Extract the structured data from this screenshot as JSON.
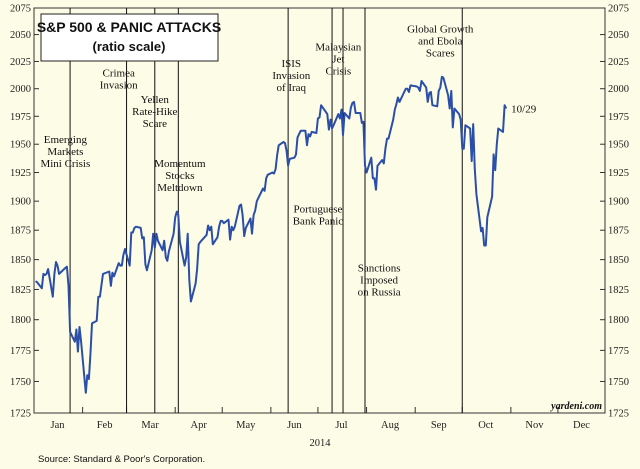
{
  "chart_data": {
    "type": "line",
    "title": "S&P 500 & PANIC ATTACKS",
    "subtitle": "(ratio scale)",
    "xlabel": "2014",
    "ylabel": "",
    "source": "Source: Standard & Poor's Corporation.",
    "watermark": "yardeni.com",
    "end_label": "10/29",
    "log_scale": true,
    "grid": false,
    "ylim": [
      1725,
      2075
    ],
    "xlim": [
      "2014-01-01",
      "2014-12-31"
    ],
    "y_ticks": [
      1725,
      1750,
      1775,
      1800,
      1825,
      1850,
      1875,
      1900,
      1925,
      1950,
      1975,
      2000,
      2025,
      2050,
      2075
    ],
    "x_ticks": [
      {
        "label": "Jan",
        "date": "2014-01-16"
      },
      {
        "label": "Feb",
        "date": "2014-02-15"
      },
      {
        "label": "Mar",
        "date": "2014-03-16"
      },
      {
        "label": "Apr",
        "date": "2014-04-16"
      },
      {
        "label": "May",
        "date": "2014-05-16"
      },
      {
        "label": "Jun",
        "date": "2014-06-16"
      },
      {
        "label": "Jul",
        "date": "2014-07-16"
      },
      {
        "label": "Aug",
        "date": "2014-08-16"
      },
      {
        "label": "Sep",
        "date": "2014-09-16"
      },
      {
        "label": "Oct",
        "date": "2014-10-16"
      },
      {
        "label": "Nov",
        "date": "2014-11-16"
      },
      {
        "label": "Dec",
        "date": "2014-12-16"
      }
    ],
    "series": [
      {
        "color": "#2b4fa8",
        "points": [
          [
            "2014-01-02",
            1832
          ],
          [
            "2014-01-03",
            1831
          ],
          [
            "2014-01-06",
            1826
          ],
          [
            "2014-01-07",
            1838
          ],
          [
            "2014-01-08",
            1837
          ],
          [
            "2014-01-09",
            1838
          ],
          [
            "2014-01-10",
            1842
          ],
          [
            "2014-01-13",
            1819
          ],
          [
            "2014-01-14",
            1838
          ],
          [
            "2014-01-15",
            1848
          ],
          [
            "2014-01-16",
            1845
          ],
          [
            "2014-01-17",
            1838
          ],
          [
            "2014-01-21",
            1843
          ],
          [
            "2014-01-22",
            1844
          ],
          [
            "2014-01-23",
            1828
          ],
          [
            "2014-01-24",
            1790
          ],
          [
            "2014-01-27",
            1782
          ],
          [
            "2014-01-28",
            1792
          ],
          [
            "2014-01-29",
            1774
          ],
          [
            "2014-01-30",
            1794
          ],
          [
            "2014-01-31",
            1782
          ],
          [
            "2014-02-03",
            1741
          ],
          [
            "2014-02-04",
            1755
          ],
          [
            "2014-02-05",
            1752
          ],
          [
            "2014-02-06",
            1773
          ],
          [
            "2014-02-07",
            1797
          ],
          [
            "2014-02-10",
            1799
          ],
          [
            "2014-02-11",
            1819
          ],
          [
            "2014-02-12",
            1819
          ],
          [
            "2014-02-13",
            1829
          ],
          [
            "2014-02-14",
            1838
          ],
          [
            "2014-02-18",
            1840
          ],
          [
            "2014-02-19",
            1828
          ],
          [
            "2014-02-20",
            1839
          ],
          [
            "2014-02-21",
            1836
          ],
          [
            "2014-02-24",
            1847
          ],
          [
            "2014-02-25",
            1845
          ],
          [
            "2014-02-26",
            1845
          ],
          [
            "2014-02-27",
            1854
          ],
          [
            "2014-02-28",
            1859
          ],
          [
            "2014-03-03",
            1845
          ],
          [
            "2014-03-04",
            1873
          ],
          [
            "2014-03-05",
            1873
          ],
          [
            "2014-03-06",
            1877
          ],
          [
            "2014-03-07",
            1878
          ],
          [
            "2014-03-10",
            1877
          ],
          [
            "2014-03-11",
            1868
          ],
          [
            "2014-03-12",
            1869
          ],
          [
            "2014-03-13",
            1846
          ],
          [
            "2014-03-14",
            1841
          ],
          [
            "2014-03-17",
            1858
          ],
          [
            "2014-03-18",
            1872
          ],
          [
            "2014-03-19",
            1860
          ],
          [
            "2014-03-20",
            1872
          ],
          [
            "2014-03-21",
            1866
          ],
          [
            "2014-03-24",
            1858
          ],
          [
            "2014-03-25",
            1866
          ],
          [
            "2014-03-26",
            1852
          ],
          [
            "2014-03-27",
            1849
          ],
          [
            "2014-03-28",
            1857
          ],
          [
            "2014-03-31",
            1872
          ],
          [
            "2014-04-01",
            1886
          ],
          [
            "2014-04-02",
            1891
          ],
          [
            "2014-04-03",
            1888
          ],
          [
            "2014-04-04",
            1865
          ],
          [
            "2014-04-07",
            1845
          ],
          [
            "2014-04-08",
            1852
          ],
          [
            "2014-04-09",
            1872
          ],
          [
            "2014-04-10",
            1833
          ],
          [
            "2014-04-11",
            1815
          ],
          [
            "2014-04-14",
            1830
          ],
          [
            "2014-04-15",
            1842
          ],
          [
            "2014-04-16",
            1863
          ],
          [
            "2014-04-17",
            1865
          ],
          [
            "2014-04-21",
            1871
          ],
          [
            "2014-04-22",
            1879
          ],
          [
            "2014-04-23",
            1875
          ],
          [
            "2014-04-24",
            1878
          ],
          [
            "2014-04-25",
            1863
          ],
          [
            "2014-04-28",
            1869
          ],
          [
            "2014-04-29",
            1878
          ],
          [
            "2014-04-30",
            1883
          ],
          [
            "2014-05-01",
            1883
          ],
          [
            "2014-05-02",
            1881
          ],
          [
            "2014-05-05",
            1884
          ],
          [
            "2014-05-06",
            1867
          ],
          [
            "2014-05-07",
            1878
          ],
          [
            "2014-05-08",
            1875
          ],
          [
            "2014-05-09",
            1878
          ],
          [
            "2014-05-12",
            1896
          ],
          [
            "2014-05-13",
            1897
          ],
          [
            "2014-05-14",
            1888
          ],
          [
            "2014-05-15",
            1870
          ],
          [
            "2014-05-16",
            1877
          ],
          [
            "2014-05-19",
            1885
          ],
          [
            "2014-05-20",
            1872
          ],
          [
            "2014-05-21",
            1888
          ],
          [
            "2014-05-22",
            1892
          ],
          [
            "2014-05-23",
            1900
          ],
          [
            "2014-05-27",
            1911
          ],
          [
            "2014-05-28",
            1909
          ],
          [
            "2014-05-29",
            1920
          ],
          [
            "2014-05-30",
            1923
          ],
          [
            "2014-06-02",
            1925
          ],
          [
            "2014-06-03",
            1924
          ],
          [
            "2014-06-04",
            1928
          ],
          [
            "2014-06-05",
            1940
          ],
          [
            "2014-06-06",
            1949
          ],
          [
            "2014-06-09",
            1952
          ],
          [
            "2014-06-10",
            1951
          ],
          [
            "2014-06-11",
            1944
          ],
          [
            "2014-06-12",
            1931
          ],
          [
            "2014-06-13",
            1937
          ],
          [
            "2014-06-16",
            1938
          ],
          [
            "2014-06-17",
            1941
          ],
          [
            "2014-06-18",
            1956
          ],
          [
            "2014-06-19",
            1959
          ],
          [
            "2014-06-20",
            1962
          ],
          [
            "2014-06-23",
            1962
          ],
          [
            "2014-06-24",
            1949
          ],
          [
            "2014-06-25",
            1959
          ],
          [
            "2014-06-26",
            1957
          ],
          [
            "2014-06-27",
            1961
          ],
          [
            "2014-06-30",
            1960
          ],
          [
            "2014-07-01",
            1973
          ],
          [
            "2014-07-02",
            1974
          ],
          [
            "2014-07-03",
            1985
          ],
          [
            "2014-07-07",
            1977
          ],
          [
            "2014-07-08",
            1963
          ],
          [
            "2014-07-09",
            1972
          ],
          [
            "2014-07-10",
            1964
          ],
          [
            "2014-07-11",
            1967
          ],
          [
            "2014-07-14",
            1977
          ],
          [
            "2014-07-15",
            1973
          ],
          [
            "2014-07-16",
            1981
          ],
          [
            "2014-07-17",
            1958
          ],
          [
            "2014-07-18",
            1978
          ],
          [
            "2014-07-21",
            1973
          ],
          [
            "2014-07-22",
            1983
          ],
          [
            "2014-07-23",
            1987
          ],
          [
            "2014-07-24",
            1988
          ],
          [
            "2014-07-25",
            1978
          ],
          [
            "2014-07-28",
            1978
          ],
          [
            "2014-07-29",
            1969
          ],
          [
            "2014-07-30",
            1970
          ],
          [
            "2014-07-31",
            1931
          ],
          [
            "2014-08-01",
            1925
          ],
          [
            "2014-08-04",
            1938
          ],
          [
            "2014-08-05",
            1920
          ],
          [
            "2014-08-06",
            1920
          ],
          [
            "2014-08-07",
            1910
          ],
          [
            "2014-08-08",
            1931
          ],
          [
            "2014-08-11",
            1936
          ],
          [
            "2014-08-12",
            1933
          ],
          [
            "2014-08-13",
            1946
          ],
          [
            "2014-08-14",
            1955
          ],
          [
            "2014-08-15",
            1955
          ],
          [
            "2014-08-18",
            1972
          ],
          [
            "2014-08-19",
            1981
          ],
          [
            "2014-08-20",
            1986
          ],
          [
            "2014-08-21",
            1992
          ],
          [
            "2014-08-22",
            1988
          ],
          [
            "2014-08-25",
            1997
          ],
          [
            "2014-08-26",
            2000
          ],
          [
            "2014-08-27",
            2000
          ],
          [
            "2014-08-28",
            1997
          ],
          [
            "2014-08-29",
            2003
          ],
          [
            "2014-09-02",
            2002
          ],
          [
            "2014-09-03",
            2001
          ],
          [
            "2014-09-04",
            1998
          ],
          [
            "2014-09-05",
            2007
          ],
          [
            "2014-09-08",
            2001
          ],
          [
            "2014-09-09",
            1988
          ],
          [
            "2014-09-10",
            1996
          ],
          [
            "2014-09-11",
            1997
          ],
          [
            "2014-09-12",
            1985
          ],
          [
            "2014-09-15",
            1984
          ],
          [
            "2014-09-16",
            1998
          ],
          [
            "2014-09-17",
            2001
          ],
          [
            "2014-09-18",
            2011
          ],
          [
            "2014-09-19",
            2010
          ],
          [
            "2014-09-22",
            1994
          ],
          [
            "2014-09-23",
            1982
          ],
          [
            "2014-09-24",
            1998
          ],
          [
            "2014-09-25",
            1965
          ],
          [
            "2014-09-26",
            1982
          ],
          [
            "2014-09-29",
            1977
          ],
          [
            "2014-09-30",
            1972
          ],
          [
            "2014-10-01",
            1946
          ],
          [
            "2014-10-02",
            1946
          ],
          [
            "2014-10-03",
            1967
          ],
          [
            "2014-10-06",
            1964
          ],
          [
            "2014-10-07",
            1935
          ],
          [
            "2014-10-08",
            1968
          ],
          [
            "2014-10-09",
            1928
          ],
          [
            "2014-10-10",
            1906
          ],
          [
            "2014-10-13",
            1874
          ],
          [
            "2014-10-14",
            1877
          ],
          [
            "2014-10-15",
            1862
          ],
          [
            "2014-10-16",
            1862
          ],
          [
            "2014-10-17",
            1886
          ],
          [
            "2014-10-20",
            1904
          ],
          [
            "2014-10-21",
            1941
          ],
          [
            "2014-10-22",
            1927
          ],
          [
            "2014-10-23",
            1950
          ],
          [
            "2014-10-24",
            1964
          ],
          [
            "2014-10-27",
            1961
          ],
          [
            "2014-10-28",
            1985
          ],
          [
            "2014-10-29",
            1982
          ]
        ]
      }
    ],
    "annotations": [
      {
        "date": "2014-01-24",
        "lines": [
          "Emerging",
          "Markets",
          "Mini Crisis"
        ],
        "label_date": "2014-01-21",
        "label_value": 1951
      },
      {
        "date": "2014-03-01",
        "lines": [
          "Crimea",
          "Invasion"
        ],
        "label_date": "2014-02-24",
        "label_value": 2011
      },
      {
        "date": "2014-03-19",
        "lines": [
          "Yellen",
          "Rate-Hike",
          "Scare"
        ],
        "label_date": "2014-03-19",
        "label_value": 1987
      },
      {
        "date": "2014-04-03",
        "lines": [
          "Momentum",
          "Stocks",
          "Meltdown"
        ],
        "label_date": "2014-04-04",
        "label_value": 1930
      },
      {
        "date": "2014-06-12",
        "lines": [
          "ISIS",
          "Invasion",
          "of Iraq"
        ],
        "label_date": "2014-06-14",
        "label_value": 2020
      },
      {
        "date": "2014-07-10",
        "lines": [
          "Portuguese",
          "Bank Panic"
        ],
        "label_date": "2014-07-01",
        "label_value": 1890
      },
      {
        "date": "2014-07-17",
        "lines": [
          "Malaysian",
          "Jet",
          "Crisis"
        ],
        "label_date": "2014-07-14",
        "label_value": 2035
      },
      {
        "date": "2014-07-31",
        "lines": [
          "Sanctions",
          "Imposed",
          "on Russia"
        ],
        "label_date": "2014-08-09",
        "label_value": 1840
      },
      {
        "date": "2014-10-01",
        "lines": [
          "Global Growth",
          "and Ebola",
          "Scares"
        ],
        "label_date": "2014-09-17",
        "label_value": 2052
      }
    ]
  }
}
